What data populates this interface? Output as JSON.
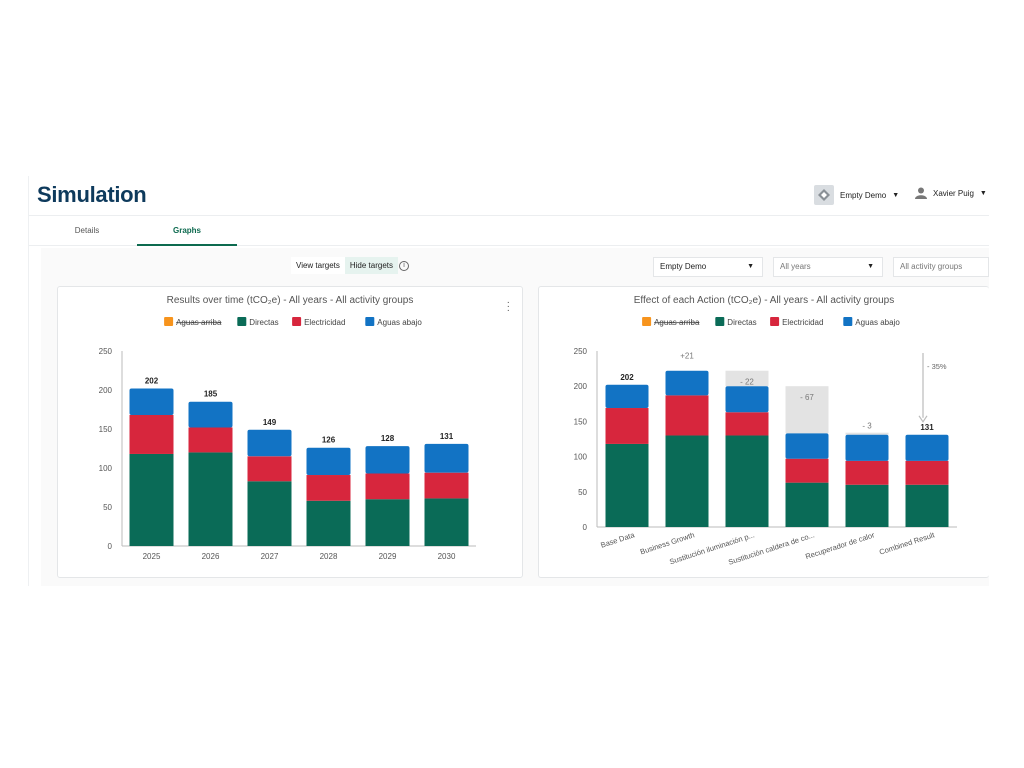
{
  "header": {
    "title": "Simulation",
    "org_name": "Empty Demo",
    "user_name": "Xavier Puig"
  },
  "tabs": [
    {
      "label": "Details",
      "active": false
    },
    {
      "label": "Graphs",
      "active": true
    }
  ],
  "controls": {
    "view_targets": "View targets",
    "hide_targets": "Hide targets",
    "hide_targets_selected": true,
    "info": "i",
    "org_select": "Empty Demo",
    "years_select": "All years",
    "groups_select": "All activity groups"
  },
  "colors": {
    "aguas_arriba": "#f7941d",
    "directas": "#0a6b57",
    "electricidad": "#d7263d",
    "aguas_abajo": "#1273c4",
    "ghost": "#e3e3e3"
  },
  "chart_data": [
    {
      "type": "bar",
      "stacked": true,
      "title": "Results over time (tCO₂e) - All years - All activity groups",
      "legend": [
        "Aguas arriba",
        "Directas",
        "Electricidad",
        "Aguas abajo"
      ],
      "legend_struck": [
        "Aguas arriba"
      ],
      "categories": [
        "2025",
        "2026",
        "2027",
        "2028",
        "2029",
        "2030"
      ],
      "series": [
        {
          "name": "Directas",
          "values": [
            118,
            120,
            83,
            58,
            60,
            61
          ]
        },
        {
          "name": "Electricidad",
          "values": [
            50,
            32,
            32,
            33,
            33,
            33
          ]
        },
        {
          "name": "Aguas abajo",
          "values": [
            34,
            33,
            34,
            35,
            35,
            37
          ]
        }
      ],
      "totals": [
        "202",
        "185",
        "149",
        "126",
        "128",
        "131"
      ],
      "ylim": [
        0,
        250
      ],
      "yticks": [
        "0",
        "50",
        "100",
        "150",
        "200",
        "250"
      ]
    },
    {
      "type": "bar",
      "stacked": true,
      "title": "Effect of each Action (tCO₂e) - All years - All activity groups",
      "legend": [
        "Aguas arriba",
        "Directas",
        "Electricidad",
        "Aguas abajo"
      ],
      "legend_struck": [
        "Aguas arriba"
      ],
      "categories": [
        "Base Data",
        "Business Growth",
        "Sustitución iluminación p...",
        "Sustitución caldera de co...",
        "Recuperador de calor",
        "Combined Result"
      ],
      "series": [
        {
          "name": "Directas",
          "values": [
            118,
            130,
            130,
            63,
            60,
            60
          ]
        },
        {
          "name": "Electricidad",
          "values": [
            51,
            57,
            33,
            34,
            34,
            34
          ]
        },
        {
          "name": "Aguas abajo",
          "values": [
            33,
            35,
            37,
            36,
            37,
            37
          ]
        }
      ],
      "ghost": [
        null,
        null,
        22,
        67,
        3,
        null
      ],
      "labels": [
        "202",
        "+21",
        "- 22",
        "- 67",
        "- 3",
        "131"
      ],
      "target_label": "- 35%",
      "ylim": [
        0,
        250
      ],
      "yticks": [
        "0",
        "50",
        "100",
        "150",
        "200",
        "250"
      ]
    }
  ]
}
